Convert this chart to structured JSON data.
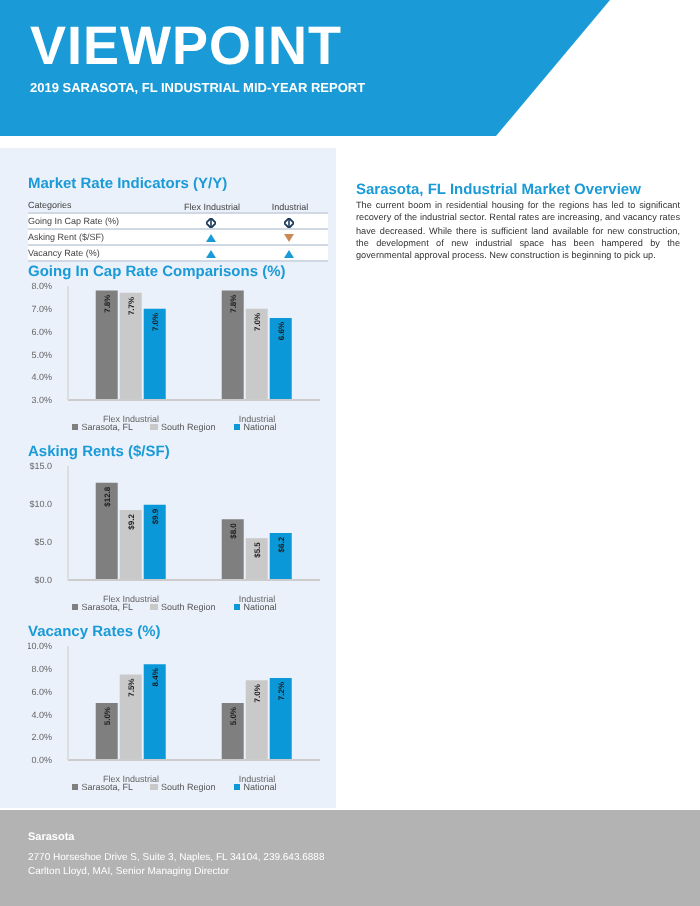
{
  "chart_data": [
    {
      "type": "other",
      "title": "VIEWPOINT",
      "subtitle": "2019 SARASOTA, FL INDUSTRIAL MID-YEAR REPORT"
    },
    {
      "type": "other",
      "title": "Market Rate Indicators (Y/Y)",
      "annotations": [
        "Categories",
        "Flex Industrial",
        "Industrial",
        "Going In Cap Rate (%)",
        "Asking Rent ($/SF)",
        "Vacancy Rate (%)"
      ]
    },
    {
      "type": "bar",
      "title": "Going In Cap Rate Comparisons (%)",
      "categories": [
        "Flex Industrial",
        "Industrial"
      ],
      "legend": "bottom",
      "ylim": [
        3,
        8
      ],
      "yticks": [
        {
          "value": 3,
          "label": "3.0%"
        },
        {
          "value": 4,
          "label": "4.0%"
        },
        {
          "value": 5,
          "label": "5.0%"
        },
        {
          "value": 6,
          "label": "6.0%"
        },
        {
          "value": 7,
          "label": "7.0%"
        },
        {
          "value": 8,
          "label": "8.0%"
        }
      ],
      "series": [
        {
          "name": "Sarasota, FL",
          "color": "#7f7f7f",
          "values": [
            7.8,
            7.8
          ],
          "value_labels": [
            "7.8%",
            "7.8%"
          ]
        },
        {
          "name": "South Region",
          "color": "#c9c9c9",
          "values": [
            7.7,
            7.0
          ],
          "value_labels": [
            "7.7%",
            "7.0%"
          ]
        },
        {
          "name": "National",
          "color": "#0a98d8",
          "values": [
            7.0,
            6.6
          ],
          "value_labels": [
            "7.0%",
            "6.6%"
          ]
        }
      ]
    },
    {
      "type": "bar",
      "title": "Asking Rents ($/SF)",
      "categories": [
        "Flex Industrial",
        "Industrial"
      ],
      "legend": "bottom",
      "ylim": [
        0,
        15
      ],
      "yticks": [
        {
          "value": 0,
          "label": "$0.0"
        },
        {
          "value": 5,
          "label": "$5.0"
        },
        {
          "value": 10,
          "label": "$10.0"
        },
        {
          "value": 15,
          "label": "$15.0"
        }
      ],
      "series": [
        {
          "name": "Sarasota, FL",
          "color": "#7f7f7f",
          "values": [
            12.8,
            8.0
          ],
          "value_labels": [
            "$12.8",
            "$8.0"
          ]
        },
        {
          "name": "South Region",
          "color": "#c9c9c9",
          "values": [
            9.2,
            5.5
          ],
          "value_labels": [
            "$9.2",
            "$5.5"
          ]
        },
        {
          "name": "National",
          "color": "#0a98d8",
          "values": [
            9.9,
            6.2
          ],
          "value_labels": [
            "$9.9",
            "$6.2"
          ]
        }
      ]
    },
    {
      "type": "bar",
      "title": "Vacancy Rates (%)",
      "categories": [
        "Flex Industrial",
        "Industrial"
      ],
      "legend": "bottom",
      "ylim": [
        0,
        10
      ],
      "yticks": [
        {
          "value": 0,
          "label": "0.0%"
        },
        {
          "value": 2,
          "label": "2.0%"
        },
        {
          "value": 4,
          "label": "4.0%"
        },
        {
          "value": 6,
          "label": "6.0%"
        },
        {
          "value": 8,
          "label": "8.0%"
        },
        {
          "value": 10,
          "label": "10.0%"
        }
      ],
      "series": [
        {
          "name": "Sarasota, FL",
          "color": "#7f7f7f",
          "values": [
            5.0,
            5.0
          ],
          "value_labels": [
            "5.0%",
            "5.0%"
          ]
        },
        {
          "name": "South Region",
          "color": "#c9c9c9",
          "values": [
            7.5,
            7.0
          ],
          "value_labels": [
            "7.5%",
            "7.0%"
          ]
        },
        {
          "name": "National",
          "color": "#0a98d8",
          "values": [
            8.4,
            7.2
          ],
          "value_labels": [
            "8.4%",
            "7.2%"
          ]
        }
      ]
    },
    {
      "type": "other",
      "title": "Sarasota, FL Industrial Market Overview",
      "annotations": [
        "The current boom in residential housing for the regions has led to significant recovery of the industrial sector. Rental rates are increasing, and vacancy rates have decreased. While there is sufficient land available for new construction, the development of new industrial space has been hampered by the governmental approval process. New construction is beginning to pick up."
      ]
    },
    {
      "type": "other",
      "title": "Sarasota",
      "annotations": [
        "2770 Horseshoe Drive S, Suite 3, Naples, FL 34104, 239.643.6888",
        "Carlton Lloyd, MAI, Senior Managing Director"
      ]
    }
  ]
}
